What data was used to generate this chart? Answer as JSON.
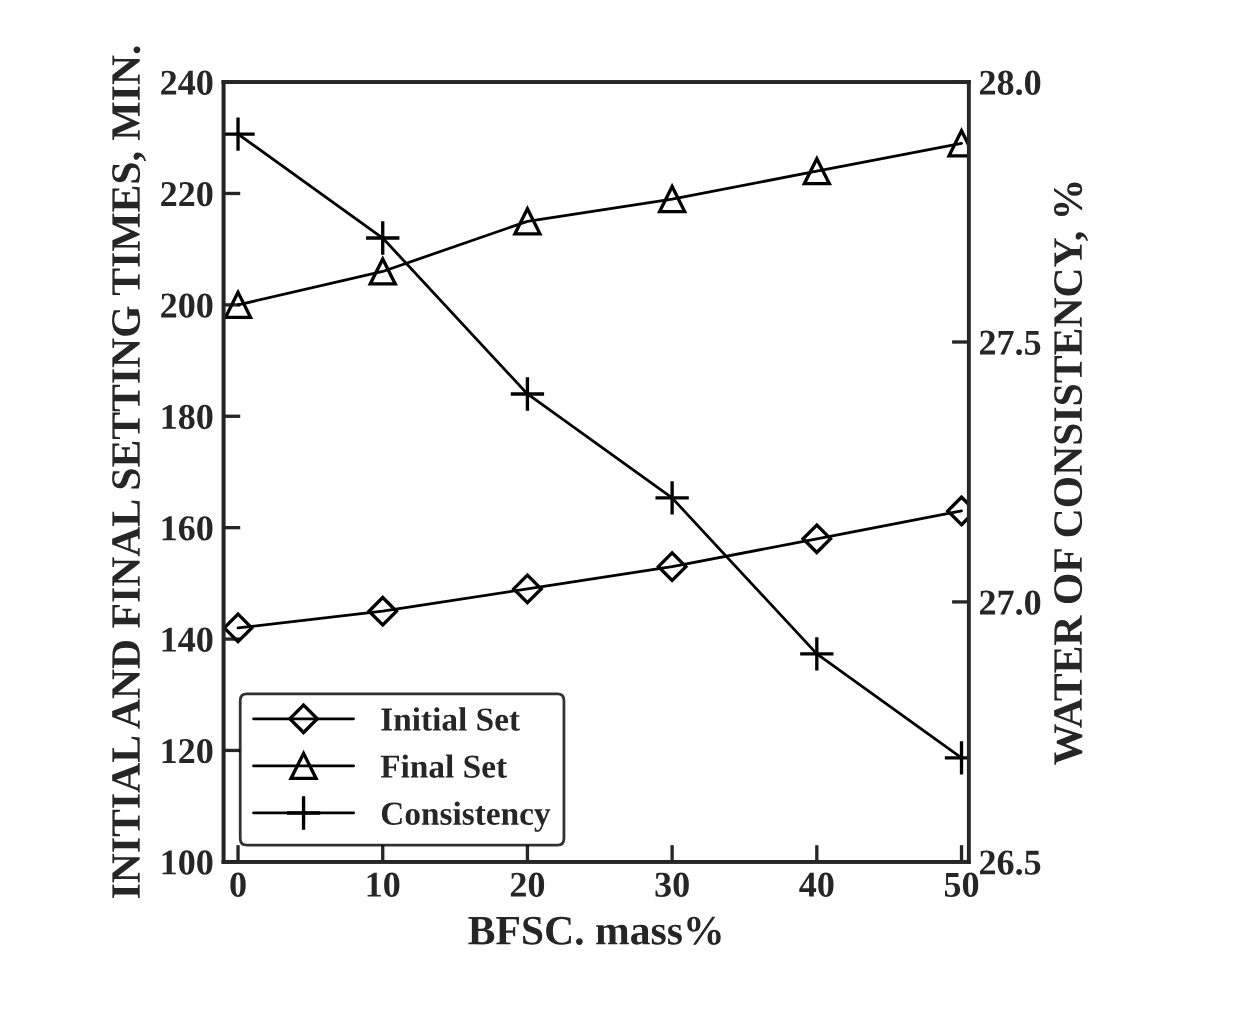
{
  "chart_data": {
    "type": "line",
    "xlabel": "BFSC. mass%",
    "ylabel": "INITIAL AND FINAL SETTING TIMES, MIN.",
    "y2label": "WATER OF CONSISTENCY, %",
    "x": [
      0,
      10,
      20,
      30,
      40,
      50
    ],
    "series": [
      {
        "name": "Initial Set",
        "color": "#000000",
        "marker": "diamond",
        "values": [
          142,
          145,
          149,
          153,
          158,
          163
        ]
      },
      {
        "name": "Final Set",
        "color": "#000000",
        "marker": "triangle",
        "values": [
          200,
          206,
          215,
          219,
          224,
          229
        ]
      },
      {
        "name": "Consistency",
        "color": "#000000",
        "marker": "cross",
        "axis": "y2",
        "values": [
          27.9,
          27.7,
          27.4,
          27.2,
          26.9,
          26.7
        ]
      }
    ],
    "xlim": [
      -1,
      50.5
    ],
    "xticks": [
      0,
      10,
      20,
      30,
      40,
      50
    ],
    "ylim": [
      100,
      240
    ],
    "yticks": [
      100,
      120,
      140,
      160,
      180,
      200,
      220,
      240
    ],
    "y2lim": [
      26.5,
      28.0
    ],
    "y2ticks": [
      {
        "value": 26.5,
        "label": "26.5"
      },
      {
        "value": 27.0,
        "label": "27.0"
      },
      {
        "value": 27.5,
        "label": "27.5"
      },
      {
        "value": 28.0,
        "label": "28.0"
      }
    ],
    "legend": "bottom left",
    "grid": false
  }
}
